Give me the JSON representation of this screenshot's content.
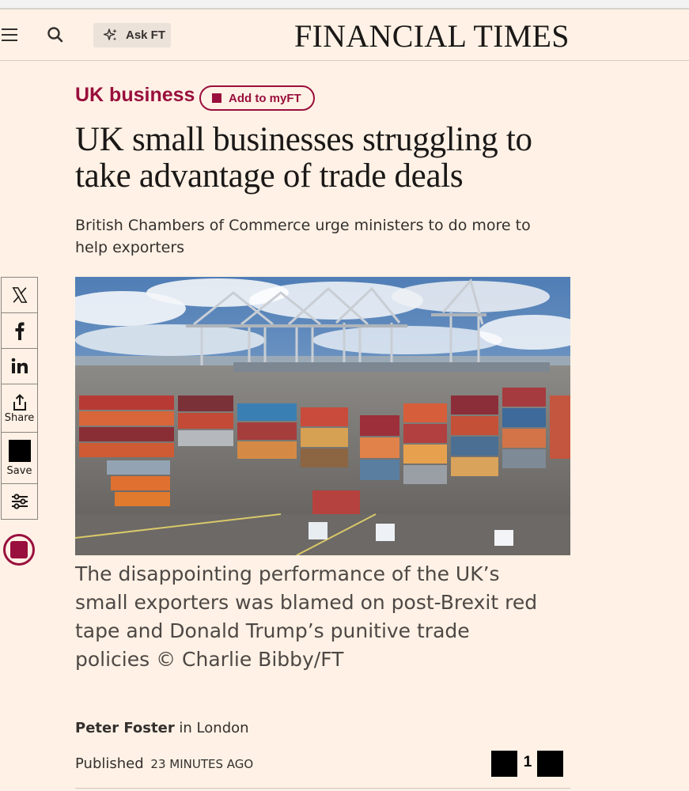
{
  "header": {
    "menu_icon": "hamburger-menu-icon",
    "search_icon": "search-icon",
    "ask_ft": {
      "icon": "sparkle-icon",
      "label": "Ask FT"
    },
    "logo": "FINANCIAL TIMES"
  },
  "article": {
    "section": "UK business",
    "add_to_myft": "Add to myFT",
    "headline": "UK small businesses struggling to take advantage of trade deals",
    "standfirst": "British Chambers of Commerce urge ministers to do more to help exporters",
    "image": {
      "subject": "container-port-cranes-photo"
    },
    "caption": "The disappointing performance of the UK’s small exporters was blamed on post-Brexit red tape and Donald Trump’s punitive trade policies © Charlie Bibby/FT",
    "byline": {
      "author": "Peter Foster",
      "location_prefix": " in London"
    },
    "published": {
      "label": "Published",
      "time": "23 MINUTES AGO"
    },
    "page_counter": "1"
  },
  "share_rail": [
    {
      "id": "x",
      "icon": "x-logo-icon",
      "label": ""
    },
    {
      "id": "facebook",
      "icon": "facebook-icon",
      "label": ""
    },
    {
      "id": "linkedin",
      "icon": "linkedin-icon",
      "label": ""
    },
    {
      "id": "share",
      "icon": "share-icon",
      "label": "Share"
    },
    {
      "id": "save",
      "icon": "save-icon",
      "label": "Save"
    },
    {
      "id": "settings",
      "icon": "sliders-icon",
      "label": ""
    }
  ],
  "colors": {
    "background": "#fff1e5",
    "brand_claret": "#990f3d",
    "text": "#33302e",
    "headline": "#1a1817"
  }
}
